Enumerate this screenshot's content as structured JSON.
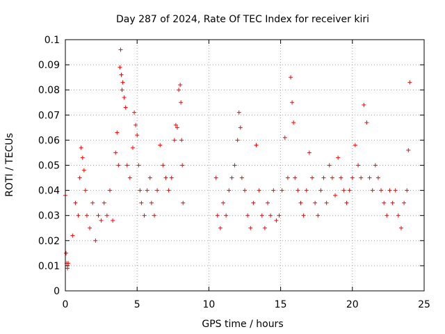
{
  "chart_data": {
    "type": "scatter",
    "title": "Day 287 of 2024, Rate Of TEC Index for receiver kiri",
    "xlabel": "GPS time / hours",
    "ylabel": "ROTI / TECUs",
    "xlim": [
      0,
      25
    ],
    "ylim": [
      0,
      0.1
    ],
    "xticks": [
      0,
      5,
      10,
      15,
      20,
      25
    ],
    "xtick_labels": [
      "0",
      "5",
      "10",
      "15",
      "20",
      "25"
    ],
    "yticks": [
      0,
      0.01,
      0.02,
      0.03,
      0.04,
      0.05,
      0.06,
      0.07,
      0.08,
      0.09,
      0.1
    ],
    "ytick_labels": [
      "0",
      "0.01",
      "0.02",
      "0.03",
      "0.04",
      "0.05",
      "0.06",
      "0.07",
      "0.08",
      "0.09",
      "0.1"
    ],
    "grid": true,
    "marker": "+",
    "color": "#ff0000",
    "series": [
      {
        "name": "ROTI",
        "x": [
          0.0,
          0.05,
          0.1,
          0.15,
          0.2,
          0.5,
          0.7,
          0.9,
          1.0,
          1.1,
          1.2,
          1.3,
          1.4,
          1.5,
          1.7,
          1.9,
          2.1,
          2.3,
          2.5,
          2.7,
          2.9,
          3.1,
          3.3,
          3.5,
          3.6,
          3.7,
          3.8,
          3.85,
          3.9,
          3.95,
          4.0,
          4.1,
          4.2,
          4.3,
          4.5,
          4.7,
          4.8,
          4.9,
          5.0,
          5.1,
          5.2,
          5.3,
          5.5,
          5.7,
          5.9,
          6.0,
          6.2,
          6.4,
          6.6,
          6.8,
          7.0,
          7.2,
          7.4,
          7.6,
          7.7,
          7.8,
          7.9,
          8.0,
          8.05,
          8.1,
          8.15,
          8.2,
          10.5,
          10.6,
          10.8,
          11.0,
          11.2,
          11.4,
          11.6,
          11.8,
          12.0,
          12.1,
          12.2,
          12.3,
          12.5,
          12.7,
          12.9,
          13.1,
          13.3,
          13.5,
          13.7,
          13.9,
          14.1,
          14.3,
          14.5,
          14.7,
          14.9,
          15.1,
          15.3,
          15.5,
          15.7,
          15.8,
          15.9,
          16.0,
          16.2,
          16.4,
          16.6,
          16.8,
          17.0,
          17.2,
          17.4,
          17.6,
          17.8,
          18.0,
          18.2,
          18.4,
          18.6,
          18.8,
          19.0,
          19.2,
          19.4,
          19.6,
          19.8,
          20.0,
          20.2,
          20.4,
          20.6,
          20.8,
          21.0,
          21.2,
          21.4,
          21.6,
          21.8,
          22.0,
          22.2,
          22.4,
          22.6,
          22.8,
          23.0,
          23.2,
          23.4,
          23.6,
          23.8,
          23.9,
          24.0
        ],
        "y": [
          0.038,
          0.015,
          0.011,
          0.009,
          0.011,
          0.022,
          0.035,
          0.03,
          0.045,
          0.057,
          0.053,
          0.048,
          0.04,
          0.03,
          0.025,
          0.035,
          0.02,
          0.03,
          0.028,
          0.035,
          0.03,
          0.04,
          0.028,
          0.055,
          0.063,
          0.05,
          0.089,
          0.096,
          0.086,
          0.08,
          0.083,
          0.077,
          0.073,
          0.05,
          0.045,
          0.057,
          0.071,
          0.066,
          0.062,
          0.05,
          0.04,
          0.035,
          0.03,
          0.04,
          0.045,
          0.035,
          0.03,
          0.04,
          0.058,
          0.05,
          0.045,
          0.04,
          0.045,
          0.06,
          0.066,
          0.065,
          0.08,
          0.082,
          0.075,
          0.06,
          0.05,
          0.035,
          0.045,
          0.03,
          0.025,
          0.035,
          0.03,
          0.04,
          0.045,
          0.05,
          0.06,
          0.071,
          0.065,
          0.045,
          0.04,
          0.03,
          0.025,
          0.035,
          0.058,
          0.04,
          0.03,
          0.025,
          0.035,
          0.03,
          0.04,
          0.028,
          0.03,
          0.04,
          0.061,
          0.045,
          0.085,
          0.075,
          0.067,
          0.045,
          0.04,
          0.035,
          0.03,
          0.04,
          0.055,
          0.045,
          0.035,
          0.03,
          0.04,
          0.045,
          0.035,
          0.05,
          0.045,
          0.038,
          0.053,
          0.045,
          0.04,
          0.035,
          0.04,
          0.045,
          0.058,
          0.05,
          0.045,
          0.074,
          0.067,
          0.045,
          0.04,
          0.05,
          0.045,
          0.04,
          0.035,
          0.03,
          0.04,
          0.035,
          0.04,
          0.03,
          0.025,
          0.035,
          0.04,
          0.056,
          0.083
        ]
      }
    ]
  }
}
